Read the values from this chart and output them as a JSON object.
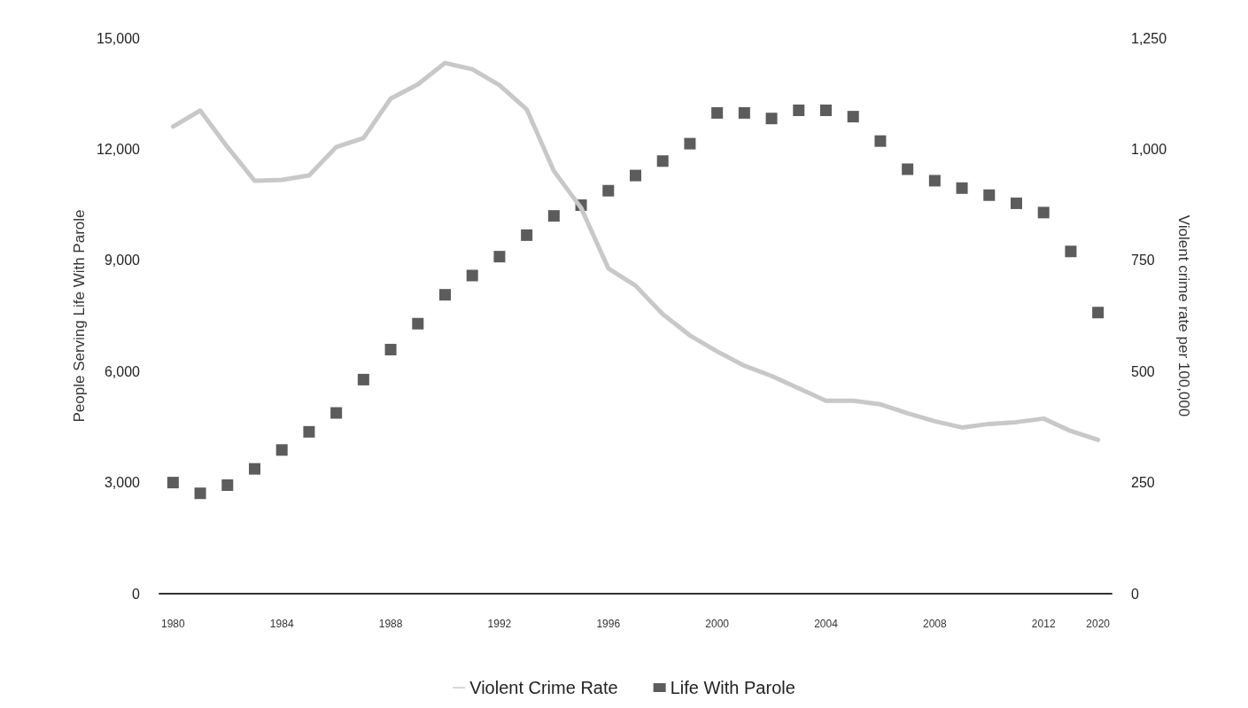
{
  "chart_data": {
    "type": "line",
    "ylabel": "People Serving Life With Parole",
    "y2label": "Violent crime rate per 100,000",
    "categories": [
      "1980",
      null,
      null,
      null,
      "1984",
      null,
      null,
      null,
      "1988",
      null,
      null,
      null,
      "1992",
      null,
      null,
      null,
      "1996",
      null,
      null,
      null,
      "2000",
      null,
      null,
      null,
      "2004",
      null,
      null,
      null,
      "2008",
      null,
      null,
      null,
      "2012",
      null,
      "2020"
    ],
    "series": [
      {
        "name": "Violent Crime Rate",
        "axis": "y2",
        "color": "#c8c8c8",
        "marker": "none",
        "line_style": "solid",
        "values": [
          1051,
          1087,
          1005,
          929,
          931,
          941,
          1005,
          1025,
          1114,
          1146,
          1194,
          1180,
          1144,
          1090,
          951,
          868,
          732,
          693,
          629,
          581,
          545,
          513,
          490,
          462,
          434,
          434,
          426,
          406,
          388,
          374,
          382,
          386,
          394,
          366,
          346
        ]
      },
      {
        "name": "Life With Parole",
        "type": "scatter",
        "color": "#333333",
        "marker": "square",
        "values": [
          3000,
          2710,
          2930,
          3370,
          3880,
          4370,
          4880,
          5780,
          6590,
          7290,
          8070,
          8590,
          9100,
          9680,
          10200,
          10490,
          10880,
          11290,
          11680,
          12150,
          12980,
          12980,
          12830,
          13050,
          13050,
          12880,
          12220,
          11460,
          11150,
          10950,
          10760,
          10540,
          10290,
          9240,
          7590
        ]
      }
    ],
    "ylim": [
      0,
      15000
    ],
    "yticks": [
      0,
      {
        "value": 3000,
        "label": "3,000"
      },
      {
        "value": 6000,
        "label": "6,000"
      },
      {
        "value": 9000,
        "label": "9,000"
      },
      {
        "value": 12000,
        "label": "12,000"
      },
      {
        "value": 15000,
        "label": "15,000"
      }
    ],
    "y2lim": [
      0,
      1250
    ],
    "y2ticks": [
      0,
      250,
      500,
      750,
      {
        "value": 1000,
        "label": "1,000"
      },
      {
        "value": 1250,
        "label": "1,250"
      }
    ],
    "grid": false,
    "legend": "bottom"
  }
}
